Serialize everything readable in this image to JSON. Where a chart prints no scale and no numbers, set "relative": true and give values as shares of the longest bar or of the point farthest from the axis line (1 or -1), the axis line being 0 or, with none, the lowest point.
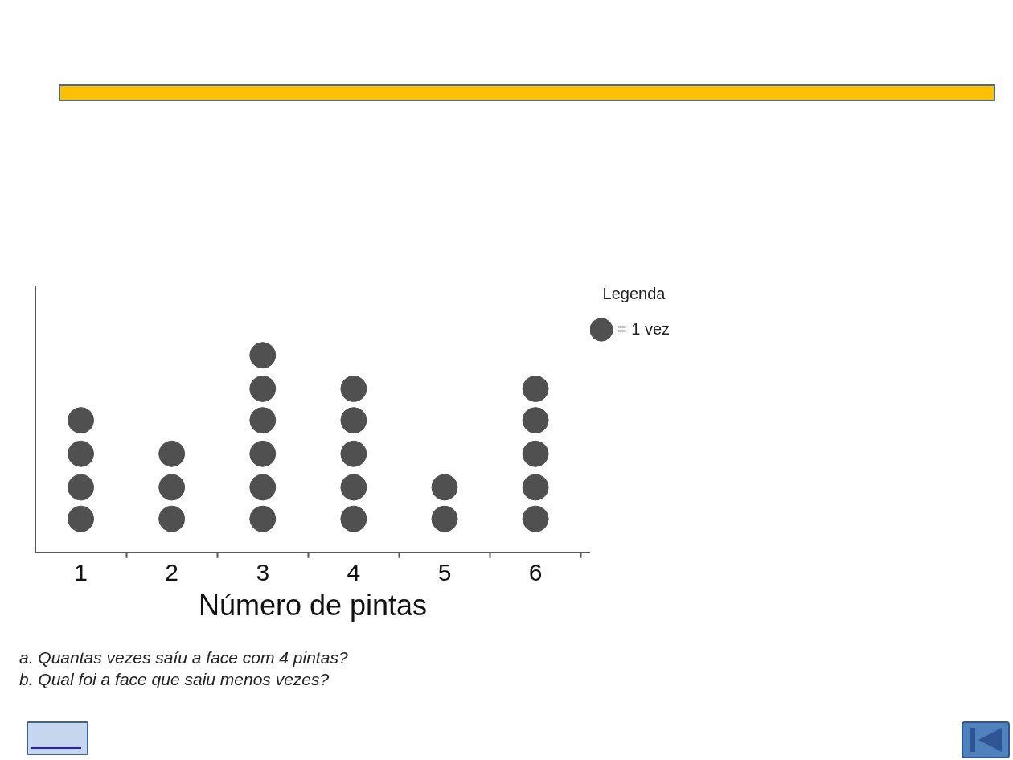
{
  "chart_data": {
    "type": "scatter",
    "relative": true,
    "xlabel": "Número de pintas",
    "legend_title": "Legenda",
    "legend": "top right",
    "marker": "circle",
    "tick_labels": "x",
    "xlim": [
      0.5,
      6.6
    ],
    "xticks": [
      1,
      {
        "value": 1.5,
        "label": null
      },
      2,
      {
        "value": 2.5,
        "label": null
      },
      3,
      {
        "value": 3.5,
        "label": null
      },
      4,
      {
        "value": 4.5,
        "label": null
      },
      5,
      {
        "value": 5.5,
        "label": null
      },
      6,
      {
        "value": 6.5,
        "label": null
      }
    ],
    "series": [
      {
        "name": "= 1 vez",
        "color": "#505050",
        "x": [
          1,
          1,
          1,
          1,
          2,
          2,
          2,
          3,
          3,
          3,
          3,
          3,
          3,
          4,
          4,
          4,
          4,
          4,
          5,
          5,
          6,
          6,
          6,
          6,
          6
        ],
        "values": [
          0.17,
          0.33,
          0.5,
          0.67,
          0.17,
          0.33,
          0.5,
          0.17,
          0.33,
          0.5,
          0.67,
          0.83,
          1,
          0.17,
          0.33,
          0.5,
          0.67,
          0.83,
          0.17,
          0.33,
          0.17,
          0.33,
          0.5,
          0.67,
          0.83
        ]
      }
    ],
    "annotations": [
      "a. Quantas vezes saíu a face com 4 pintas?",
      "b. Qual foi a face que saiu menos vezes?"
    ]
  }
}
